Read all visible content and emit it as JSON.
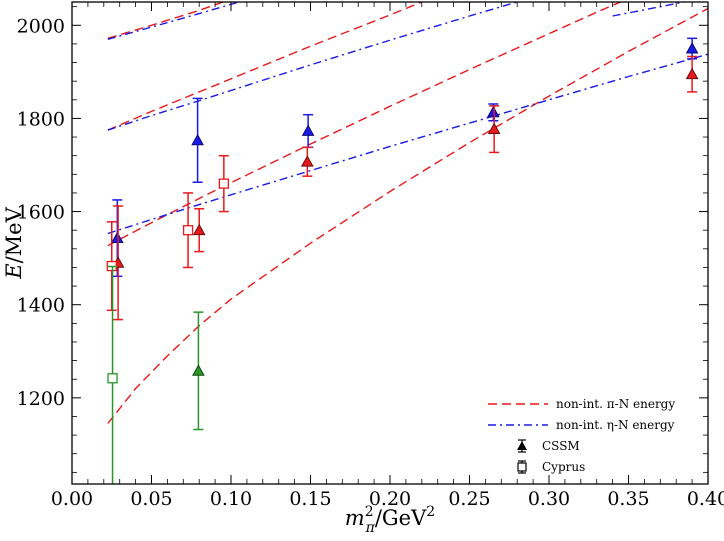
{
  "chart_data": {
    "type": "scatter",
    "xlabel_parts": {
      "var": "m",
      "sub": "π",
      "sup": "2",
      "unit": "/GeV",
      "unit_sup": "2"
    },
    "ylabel_parts": {
      "var": "E",
      "unit": "/MeV"
    },
    "xlim": [
      0.0,
      0.4
    ],
    "ylim": [
      1015,
      2050
    ],
    "xticks": [
      "0.00",
      "0.05",
      "0.10",
      "0.15",
      "0.20",
      "0.25",
      "0.30",
      "0.35",
      "0.40"
    ],
    "xtick_values": [
      0.0,
      0.05,
      0.1,
      0.15,
      0.2,
      0.25,
      0.3,
      0.35,
      0.4
    ],
    "yticks": [
      "1200",
      "1400",
      "1600",
      "1800",
      "2000"
    ],
    "ytick_values": [
      1200,
      1400,
      1600,
      1800,
      2000
    ],
    "grid": false,
    "legend_position": "bottom-right",
    "legend": [
      {
        "label": "non-int. π-N energy",
        "style": "dashed",
        "color": "#e8191c"
      },
      {
        "label": "non-int. η-N energy",
        "style": "dashdot",
        "color": "#1a1ae6"
      },
      {
        "label": "CSSM",
        "style": "triangle",
        "color": "#000000"
      },
      {
        "label": "Cyprus",
        "style": "square",
        "color": "#000000"
      }
    ],
    "lines": [
      {
        "kind": "pi-N",
        "color": "#e8191c",
        "style": "dashed",
        "points": [
          [
            0.0225,
            1145
          ],
          [
            0.04,
            1220
          ],
          [
            0.06,
            1290
          ],
          [
            0.08,
            1355
          ],
          [
            0.1,
            1412
          ],
          [
            0.15,
            1532
          ],
          [
            0.2,
            1643
          ],
          [
            0.25,
            1748
          ],
          [
            0.3,
            1848
          ],
          [
            0.35,
            1944
          ],
          [
            0.4,
            2036
          ]
        ]
      },
      {
        "kind": "pi-N",
        "color": "#e8191c",
        "style": "dashed",
        "points": [
          [
            0.0225,
            1527
          ],
          [
            0.05,
            1576
          ],
          [
            0.08,
            1628
          ],
          [
            0.1,
            1662
          ],
          [
            0.15,
            1745
          ],
          [
            0.2,
            1826
          ],
          [
            0.25,
            1905
          ],
          [
            0.3,
            1982
          ],
          [
            0.33,
            2028
          ],
          [
            0.345,
            2050
          ]
        ]
      },
      {
        "kind": "pi-N",
        "color": "#e8191c",
        "style": "dashed",
        "points": [
          [
            0.0225,
            1775
          ],
          [
            0.05,
            1815
          ],
          [
            0.08,
            1857
          ],
          [
            0.1,
            1885
          ],
          [
            0.15,
            1955
          ],
          [
            0.2,
            2022
          ],
          [
            0.22,
            2050
          ]
        ]
      },
      {
        "kind": "pi-N",
        "color": "#e8191c",
        "style": "dashed",
        "points": [
          [
            0.0225,
            1972
          ],
          [
            0.05,
            2000
          ],
          [
            0.08,
            2032
          ],
          [
            0.095,
            2050
          ]
        ]
      },
      {
        "kind": "eta-N",
        "color": "#1a1ae6",
        "style": "dashdot",
        "points": [
          [
            0.0225,
            1553
          ],
          [
            0.05,
            1583
          ],
          [
            0.08,
            1615
          ],
          [
            0.1,
            1636
          ],
          [
            0.15,
            1688
          ],
          [
            0.2,
            1740
          ],
          [
            0.25,
            1790
          ],
          [
            0.3,
            1840
          ],
          [
            0.35,
            1890
          ],
          [
            0.4,
            1938
          ]
        ]
      },
      {
        "kind": "eta-N",
        "color": "#1a1ae6",
        "style": "dashdot",
        "points": [
          [
            0.0225,
            1775
          ],
          [
            0.05,
            1806
          ],
          [
            0.08,
            1838
          ],
          [
            0.1,
            1860
          ],
          [
            0.15,
            1915
          ],
          [
            0.2,
            1968
          ],
          [
            0.25,
            2020
          ],
          [
            0.28,
            2050
          ]
        ]
      },
      {
        "kind": "eta-N",
        "color": "#1a1ae6",
        "style": "dashdot",
        "points": [
          [
            0.0225,
            1970
          ],
          [
            0.05,
            1996
          ],
          [
            0.08,
            2025
          ],
          [
            0.105,
            2050
          ]
        ]
      },
      {
        "kind": "eta-N",
        "color": "#1a1ae6",
        "style": "dashdot",
        "points": [
          [
            0.34,
            2020
          ],
          [
            0.37,
            2040
          ],
          [
            0.385,
            2050
          ]
        ]
      }
    ],
    "points": [
      {
        "set": "CSSM",
        "marker": "triangle",
        "color": "#1a1ae6",
        "x": 0.0285,
        "y": 1543,
        "err": 82
      },
      {
        "set": "CSSM",
        "marker": "triangle",
        "color": "#e8191c",
        "x": 0.029,
        "y": 1490,
        "err": 122
      },
      {
        "set": "CSSM",
        "marker": "triangle",
        "color": "#1a1ae6",
        "x": 0.079,
        "y": 1753,
        "err": 90
      },
      {
        "set": "CSSM",
        "marker": "triangle",
        "color": "#e8191c",
        "x": 0.08,
        "y": 1560,
        "err": 46
      },
      {
        "set": "CSSM",
        "marker": "triangle",
        "color": "#2a962a",
        "x": 0.0795,
        "y": 1258,
        "err": 126
      },
      {
        "set": "CSSM",
        "marker": "triangle",
        "color": "#1a1ae6",
        "x": 0.1485,
        "y": 1773,
        "err": 35
      },
      {
        "set": "CSSM",
        "marker": "triangle",
        "color": "#e8191c",
        "x": 0.148,
        "y": 1707,
        "err": 31
      },
      {
        "set": "CSSM",
        "marker": "triangle",
        "color": "#1a1ae6",
        "x": 0.265,
        "y": 1813,
        "err": 18
      },
      {
        "set": "CSSM",
        "marker": "triangle",
        "color": "#e8191c",
        "x": 0.2655,
        "y": 1777,
        "err": 50
      },
      {
        "set": "CSSM",
        "marker": "triangle",
        "color": "#1a1ae6",
        "x": 0.39,
        "y": 1950,
        "err": 22
      },
      {
        "set": "CSSM",
        "marker": "triangle",
        "color": "#e8191c",
        "x": 0.39,
        "y": 1895,
        "err": 38
      },
      {
        "set": "Cyprus",
        "marker": "square",
        "color": "#e8191c",
        "x": 0.025,
        "y": 1483,
        "err": 95
      },
      {
        "set": "Cyprus",
        "marker": "square",
        "color": "#2a962a",
        "x": 0.0255,
        "y": 1242,
        "err": 240
      },
      {
        "set": "Cyprus",
        "marker": "square",
        "color": "#e8191c",
        "x": 0.073,
        "y": 1560,
        "err": 80
      },
      {
        "set": "Cyprus",
        "marker": "square",
        "color": "#e8191c",
        "x": 0.0955,
        "y": 1660,
        "err": 60
      }
    ]
  }
}
